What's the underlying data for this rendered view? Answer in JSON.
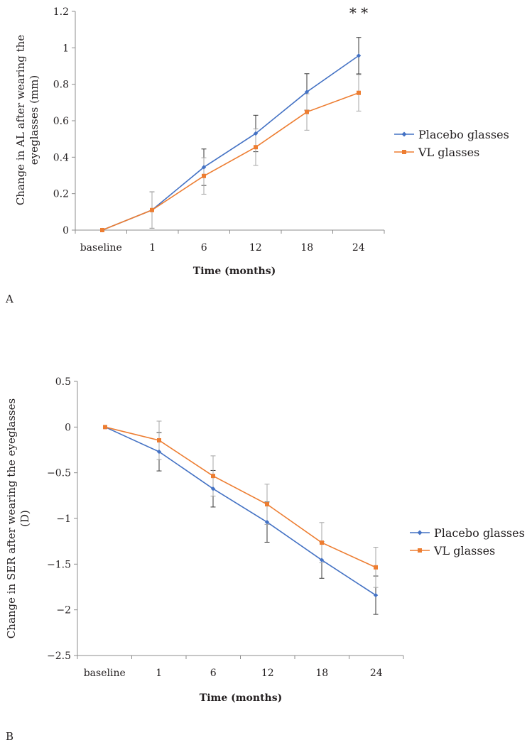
{
  "chart_data": [
    {
      "type": "line",
      "panel_label": "A",
      "categories": [
        "baseline",
        "1",
        "6",
        "12",
        "18",
        "24"
      ],
      "xlabel": "Time (months)",
      "ylabel_lines": [
        "Change in AL after wearing the",
        "eyeglasses (mm)"
      ],
      "ylim": [
        0,
        1.2
      ],
      "yticks": [
        0,
        0.2,
        0.4,
        0.6,
        0.8,
        1,
        1.2
      ],
      "ytick_labels": [
        "0",
        "0.2",
        "0.4",
        "0.6",
        "0.8",
        "1",
        "1.2"
      ],
      "annotation": "* *",
      "legend_position": "right",
      "series": [
        {
          "name": "Placebo glasses",
          "color": "#4472c4",
          "marker": "diamond",
          "values": [
            0,
            0.11,
            0.345,
            0.53,
            0.758,
            0.957
          ],
          "errors": [
            0,
            0.1,
            0.1,
            0.1,
            0.1,
            0.1
          ]
        },
        {
          "name": "VL glasses",
          "color": "#ed7d31",
          "marker": "square",
          "values": [
            0,
            0.11,
            0.297,
            0.455,
            0.648,
            0.753
          ],
          "errors": [
            0,
            0.1,
            0.1,
            0.1,
            0.1,
            0.1
          ]
        }
      ]
    },
    {
      "type": "line",
      "panel_label": "B",
      "categories": [
        "baseline",
        "1",
        "6",
        "12",
        "18",
        "24"
      ],
      "xlabel": "Time (months)",
      "ylabel_lines": [
        "Change in SER  after wearing the eyeglasses",
        "(D)"
      ],
      "ylim": [
        -2.5,
        0.5
      ],
      "yticks": [
        -2.5,
        -2,
        -1.5,
        -1,
        -0.5,
        0,
        0.5
      ],
      "ytick_labels": [
        "−2.5",
        "−2",
        "−1.5",
        "−1",
        "−0.5",
        "0",
        "0.5"
      ],
      "legend_position": "right",
      "series": [
        {
          "name": "Placebo glasses",
          "color": "#4472c4",
          "marker": "diamond",
          "values": [
            0,
            -0.27,
            -0.675,
            -1.04,
            -1.455,
            -1.84
          ],
          "errors": [
            0,
            0.21,
            0.2,
            0.22,
            0.2,
            0.21
          ]
        },
        {
          "name": "VL glasses",
          "color": "#ed7d31",
          "marker": "square",
          "values": [
            0,
            -0.145,
            -0.535,
            -0.845,
            -1.265,
            -1.535
          ],
          "errors": [
            0,
            0.21,
            0.22,
            0.22,
            0.22,
            0.22
          ]
        }
      ]
    }
  ]
}
